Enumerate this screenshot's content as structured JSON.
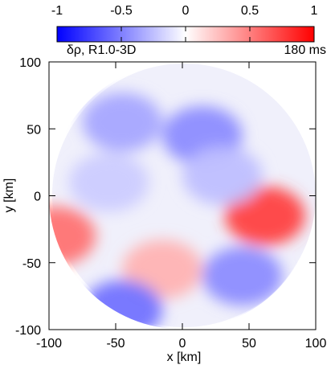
{
  "chart_data": {
    "type": "heatmap",
    "title": "",
    "annotation_left": "δρ, R1.0-3D",
    "annotation_right": "180 ms",
    "xlabel": "x [km]",
    "ylabel": "y [km]",
    "xlim": [
      -100,
      100
    ],
    "ylim": [
      -100,
      100
    ],
    "xticks": [
      -100,
      -50,
      0,
      50,
      100
    ],
    "yticks": [
      -100,
      -50,
      0,
      50,
      100
    ],
    "xtick_labels": [
      "-100",
      "-50",
      "0",
      "50",
      "100"
    ],
    "ytick_labels": [
      "-100",
      "-50",
      "0",
      "50",
      "100"
    ],
    "colorbar": {
      "range": [
        -1,
        1
      ],
      "ticks": [
        -1,
        -0.5,
        0,
        0.5,
        1
      ],
      "tick_labels": [
        "-1",
        "-0.5",
        "0",
        "0.5",
        "1"
      ],
      "colors": {
        "min": "#0000ff",
        "mid": "#ffffff",
        "max": "#ff0000"
      }
    },
    "domain_shape": "disk",
    "domain_radius": 100,
    "features": [
      {
        "x": 62,
        "y": -15,
        "value": 0.75
      },
      {
        "x": -95,
        "y": -30,
        "value": 0.55
      },
      {
        "x": -15,
        "y": -55,
        "value": 0.3
      },
      {
        "x": -45,
        "y": 55,
        "value": -0.35
      },
      {
        "x": 15,
        "y": 45,
        "value": -0.45
      },
      {
        "x": -45,
        "y": -85,
        "value": -0.55
      },
      {
        "x": 45,
        "y": -60,
        "value": -0.45
      },
      {
        "x": -55,
        "y": 10,
        "value": -0.2
      },
      {
        "x": 30,
        "y": 15,
        "value": -0.25
      }
    ],
    "grid": false
  }
}
